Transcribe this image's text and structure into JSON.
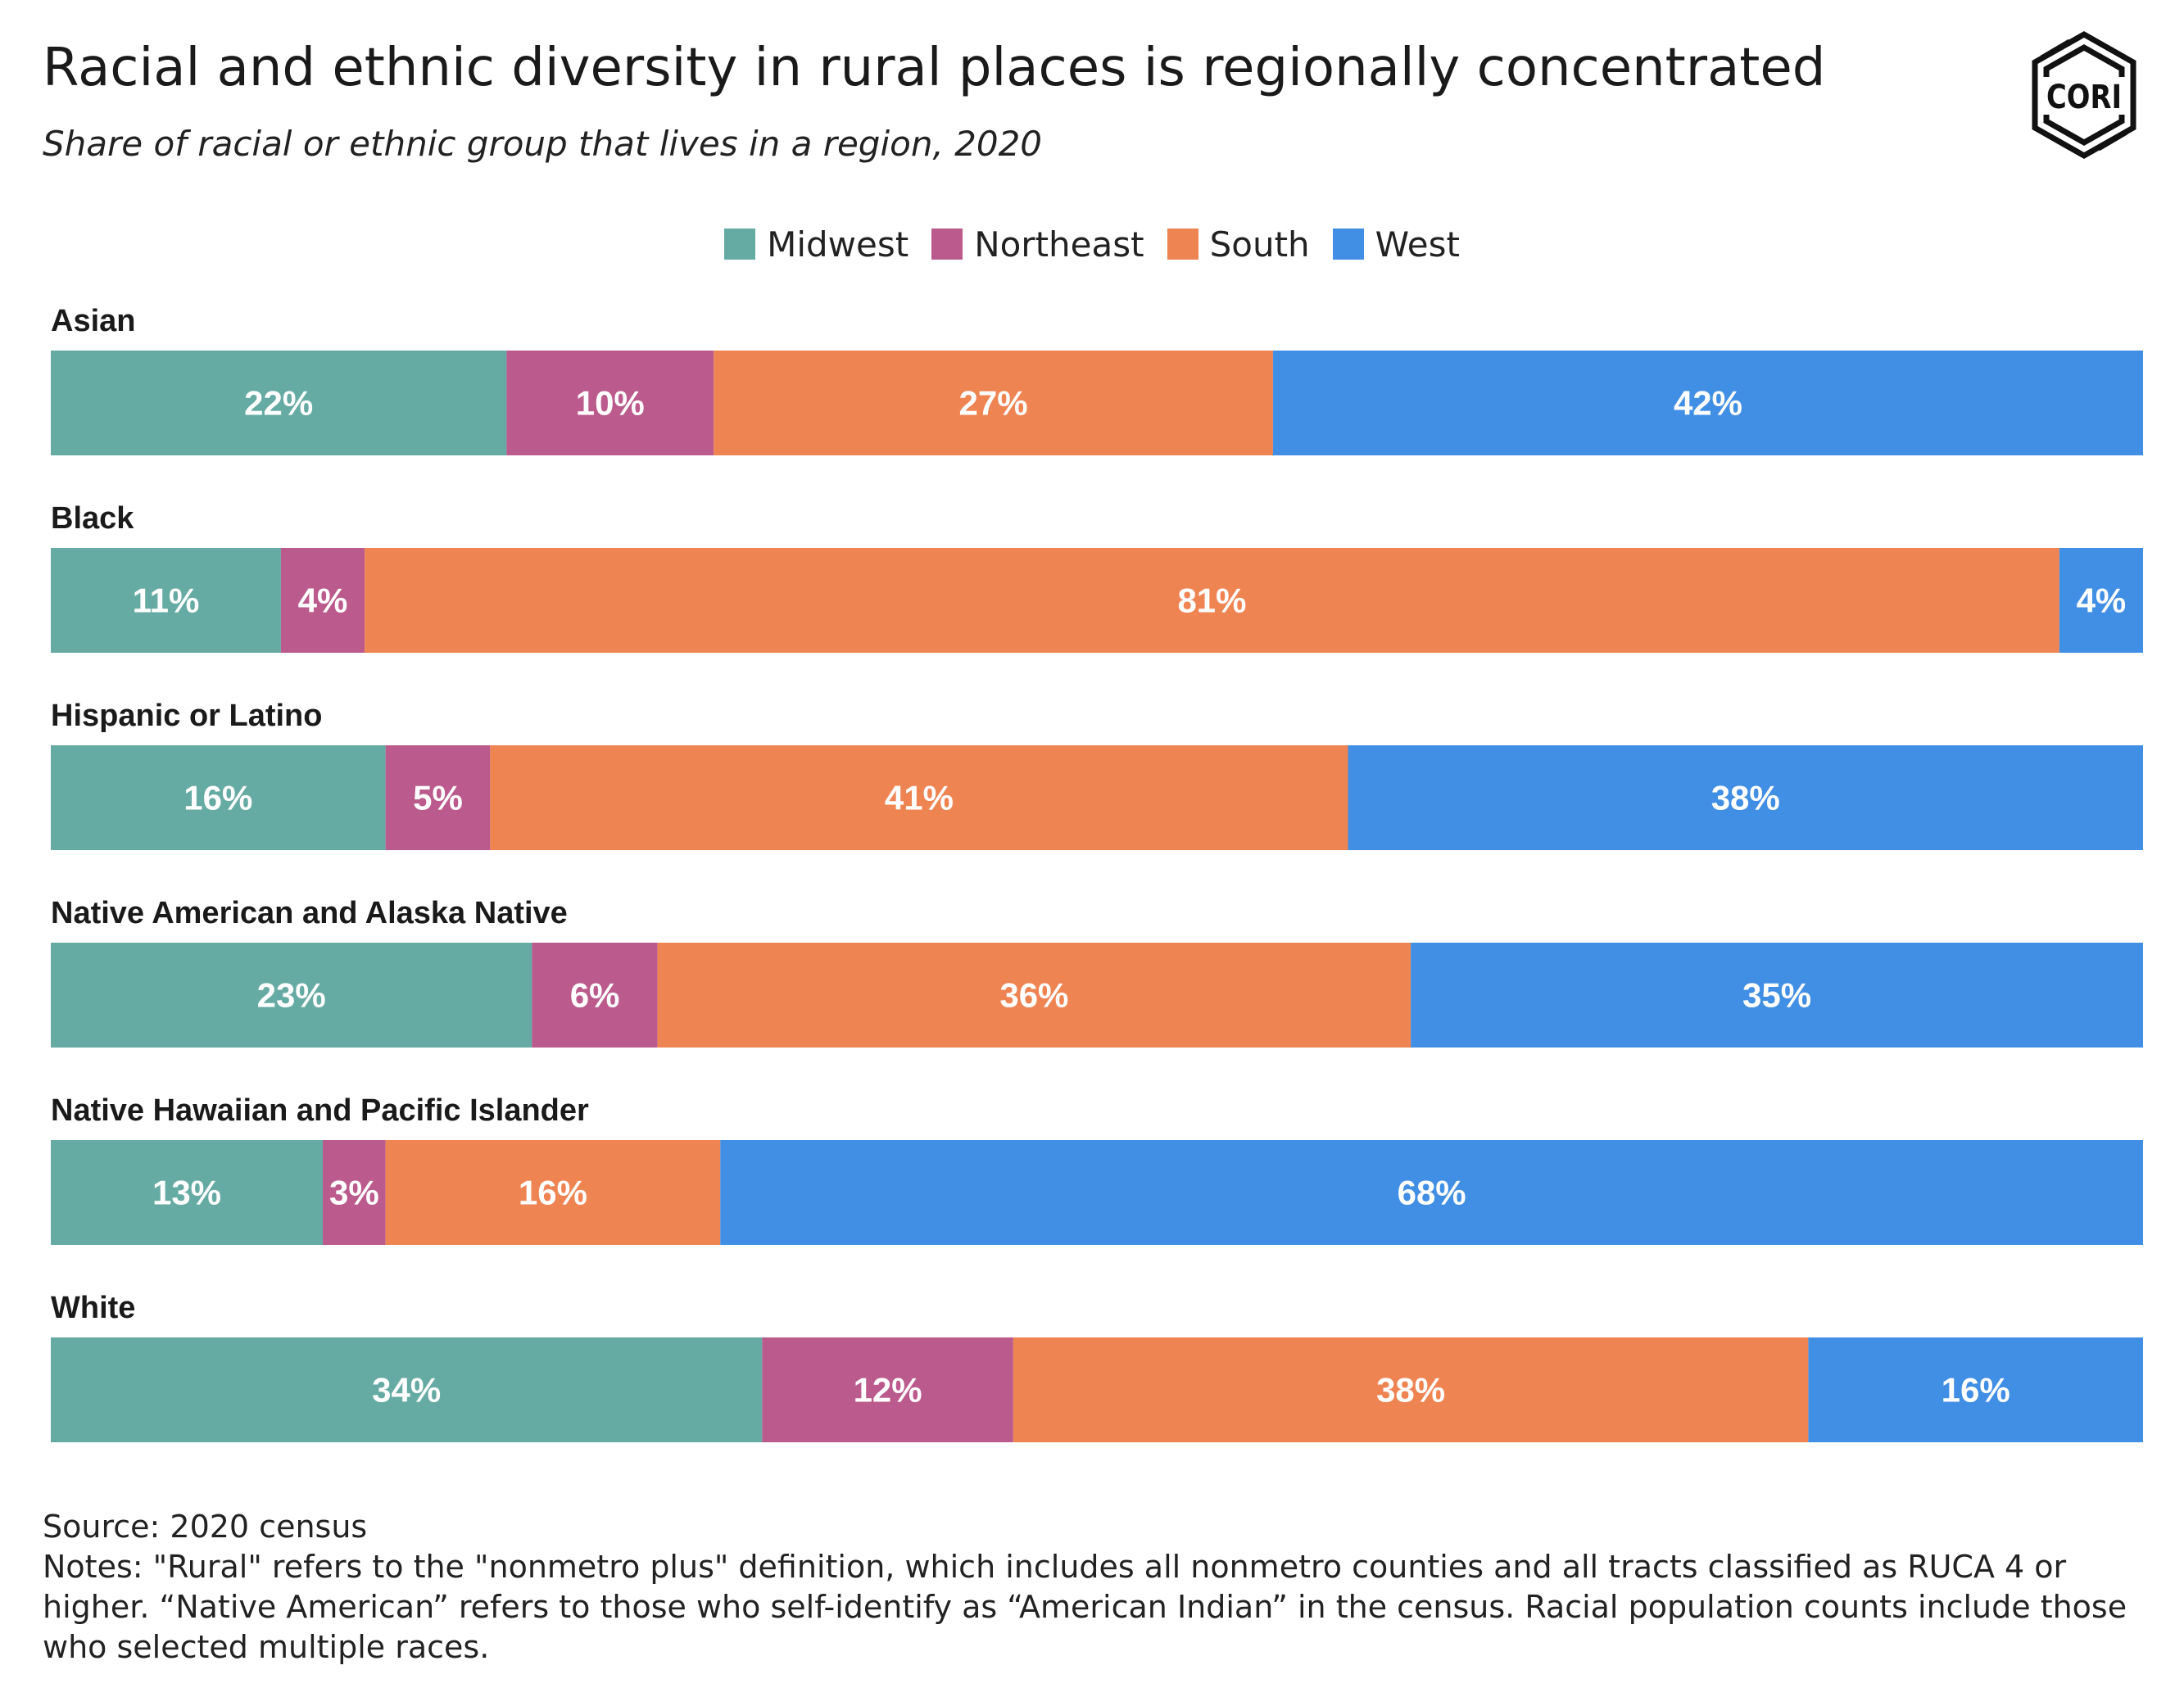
{
  "header": {
    "title": "Racial and ethnic diversity in rural places is regionally concentrated",
    "subtitle": "Share of racial or ethnic group that lives in a region, 2020",
    "logo_text": "CORI"
  },
  "chart_data": {
    "type": "bar",
    "orientation": "horizontal",
    "stacked": true,
    "legend_position": "top-center",
    "grid": false,
    "categories": [
      "Asian",
      "Black",
      "Hispanic or Latino",
      "Native American and Alaska Native",
      "Native Hawaiian and Pacific Islander",
      "White"
    ],
    "series": [
      {
        "name": "Midwest",
        "color": "#66ABA3",
        "values": [
          22,
          11,
          16,
          23,
          13,
          34
        ],
        "labels": [
          "22%",
          "11%",
          "16%",
          "23%",
          "13%",
          "34%"
        ]
      },
      {
        "name": "Northeast",
        "color": "#BB5A8C",
        "values": [
          10,
          4,
          5,
          6,
          3,
          12
        ],
        "labels": [
          "10%",
          "4%",
          "5%",
          "6%",
          "3%",
          "12%"
        ]
      },
      {
        "name": "South",
        "color": "#EF8453",
        "values": [
          27,
          81,
          41,
          36,
          16,
          38
        ],
        "labels": [
          "27%",
          "81%",
          "41%",
          "36%",
          "16%",
          "38%"
        ]
      },
      {
        "name": "West",
        "color": "#418FE4",
        "values": [
          42,
          4,
          38,
          35,
          68,
          16
        ],
        "labels": [
          "42%",
          "4%",
          "38%",
          "35%",
          "68%",
          "16%"
        ]
      }
    ]
  },
  "footer": {
    "source": "Source: 2020 census",
    "notes_line1": "Notes: \"Rural\" refers to the \"nonmetro plus\" definition, which includes all nonmetro counties and all tracts classified as RUCA 4 or",
    "notes_line2": "higher. “Native American” refers to those who self-identify as “American Indian” in the census. Racial population counts include those",
    "notes_line3": "who selected multiple races."
  }
}
